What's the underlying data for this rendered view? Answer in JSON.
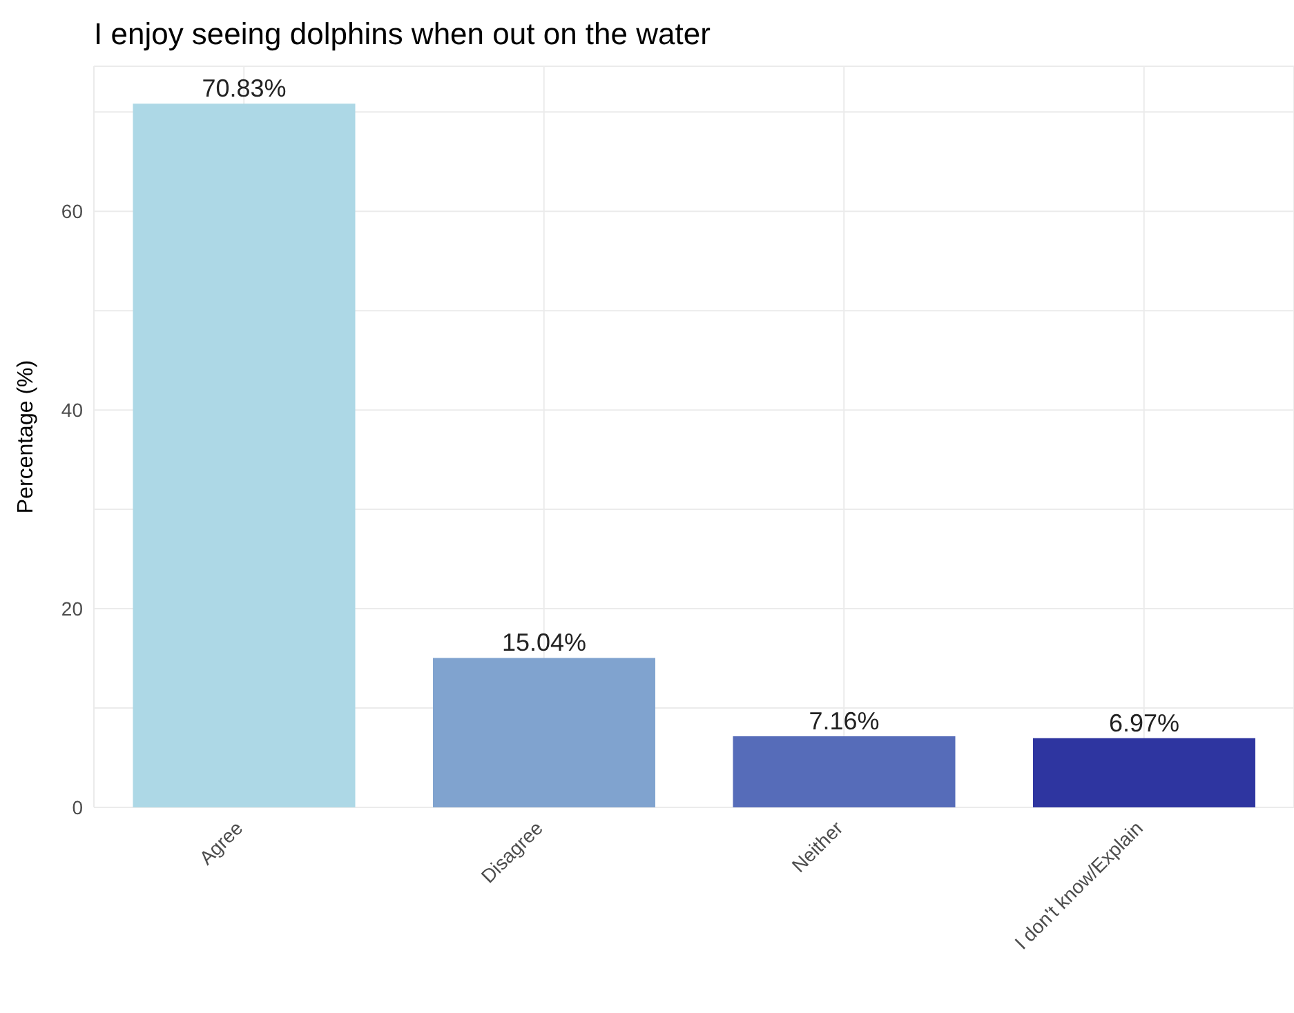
{
  "chart_data": {
    "type": "bar",
    "title": "I enjoy seeing dolphins when out on the water",
    "ylabel": "Percentage (%)",
    "categories": [
      "Agree",
      "Disagree",
      "Neither",
      "I don't know/Explain"
    ],
    "values": [
      70.83,
      15.04,
      7.16,
      6.97
    ],
    "colors": [
      "#add8e6",
      "#80a3cf",
      "#566cb9",
      "#2e35a0"
    ],
    "value_labels": [
      "70.83%",
      "15.04%",
      "7.16%",
      "6.97%"
    ],
    "ylim": [
      0,
      74.6
    ],
    "yticks": [
      0,
      {
        "value": 10,
        "label": null
      },
      20,
      {
        "value": 30,
        "label": null
      },
      40,
      {
        "value": 50,
        "label": null
      },
      60,
      {
        "value": 70,
        "label": null
      }
    ],
    "grid": true,
    "legend": false
  }
}
